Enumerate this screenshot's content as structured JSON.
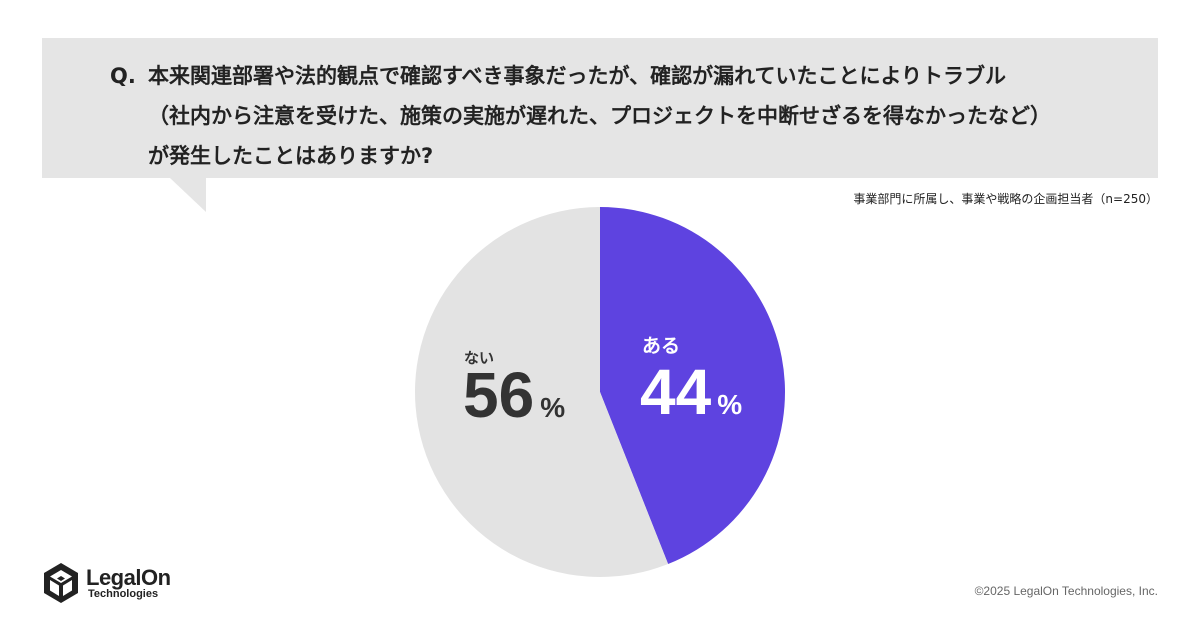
{
  "question": {
    "prefix": "Q.",
    "lines": [
      "本来関連部署や法的観点で確認すべき事象だったが、確認が漏れていたことによりトラブル",
      "（社内から注意を受けた、施策の実施が遅れた、プロジェクトを中断せざるを得なかったなど）",
      "が発生したことはありますか?"
    ]
  },
  "sample_note": "事業部門に所属し、事業や戦略の企画担当者（n=250）",
  "chart_data": {
    "type": "pie",
    "unit": "%",
    "slices": [
      {
        "label": "ある",
        "value": 44,
        "color": "#5e43e0",
        "text_color": "#ffffff"
      },
      {
        "label": "ない",
        "value": 56,
        "color": "#e3e3e3",
        "text_color": "#333333"
      }
    ]
  },
  "logo": {
    "name": "LegalOn",
    "sub": "Technologies"
  },
  "copyright": "©2025 LegalOn Technologies, Inc."
}
